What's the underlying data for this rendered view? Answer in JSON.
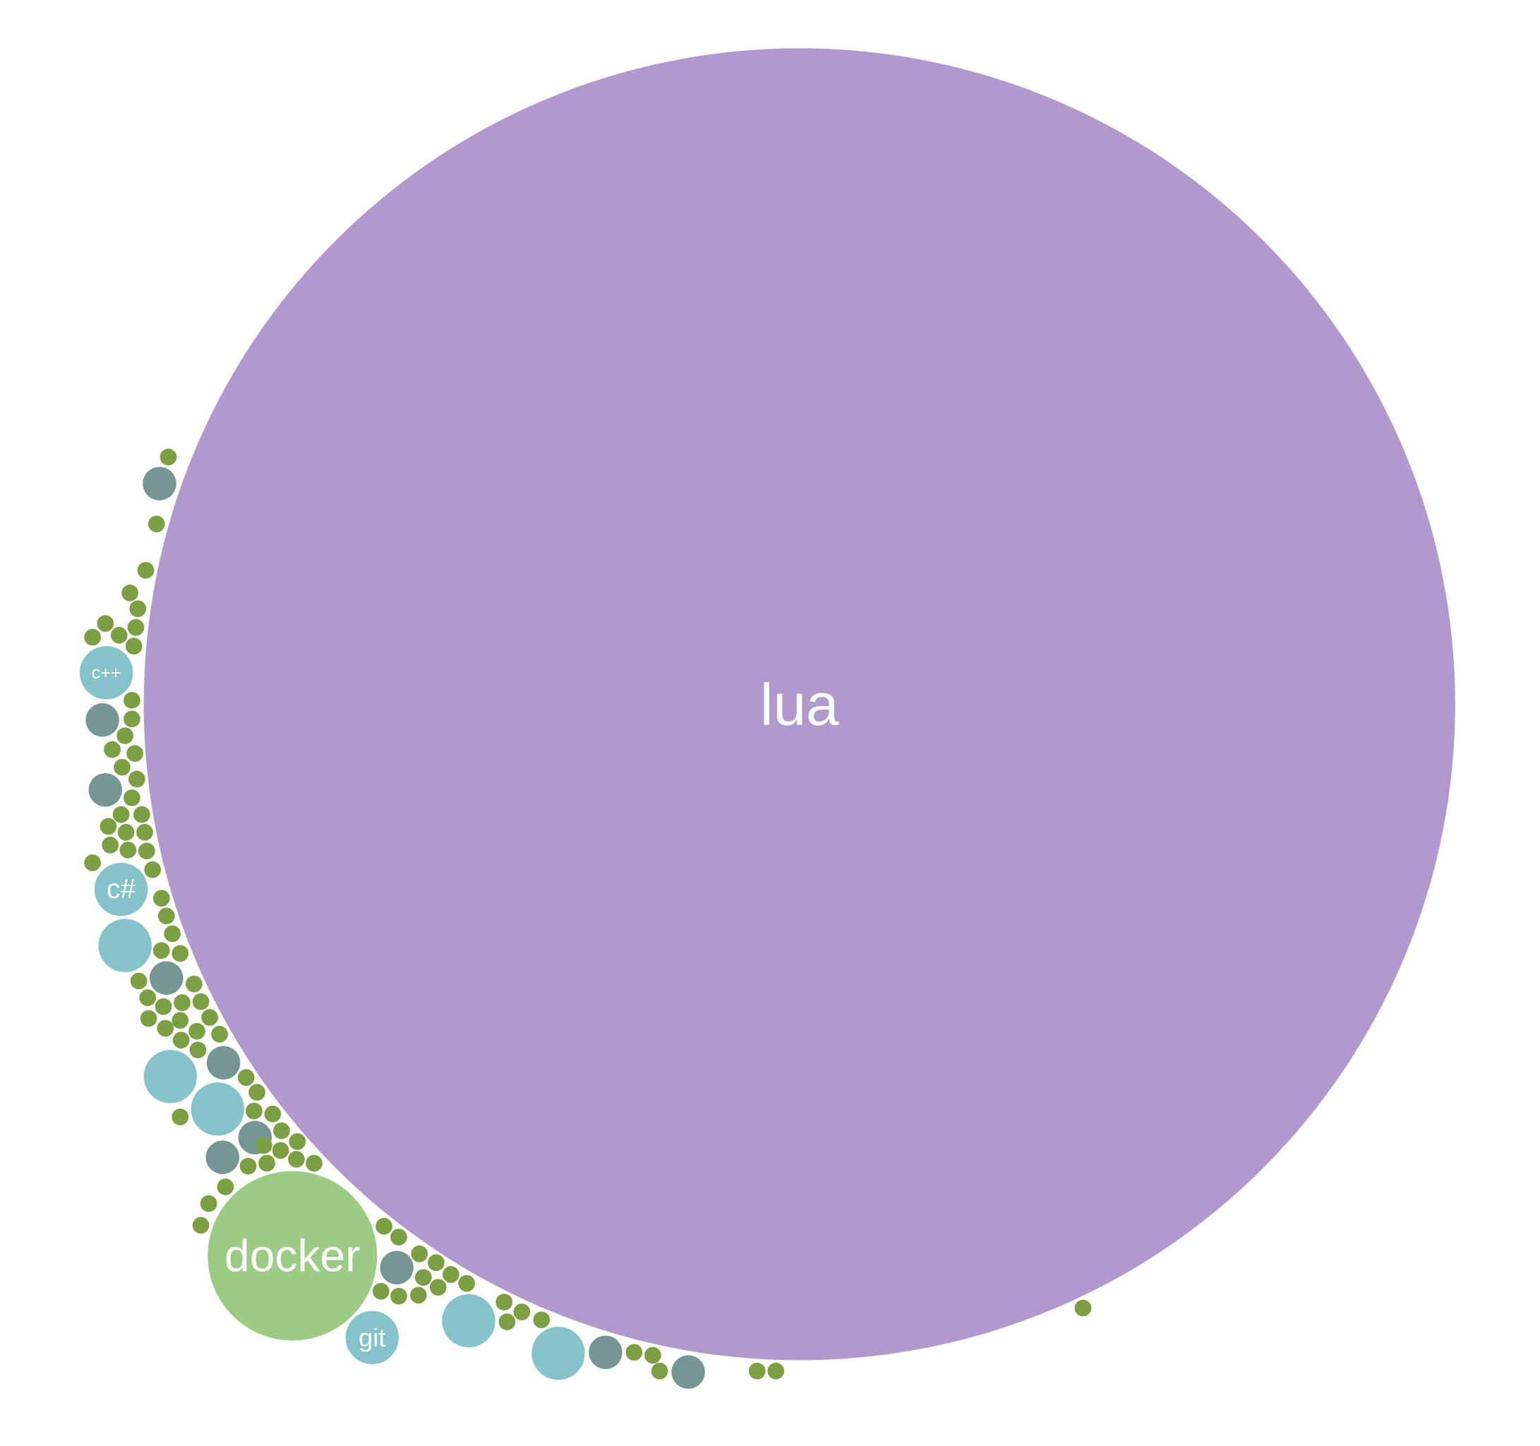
{
  "chart_data": {
    "type": "bubble",
    "colors": {
      "purple": "#b09acd",
      "light_green": "#9ccc84",
      "teal": "#84c3c9",
      "dark_teal": "#769694",
      "olive": "#7c9f44"
    },
    "labeled_bubbles": [
      {
        "label": "lua",
        "color": "purple"
      },
      {
        "label": "docker",
        "color": "light_green"
      },
      {
        "label": "git",
        "color": "teal"
      },
      {
        "label": "c#",
        "color": "teal"
      },
      {
        "label": "c++",
        "color": "teal"
      }
    ],
    "unlabeled_counts": {
      "teal": 5,
      "dark_teal": 11,
      "olive": 100
    }
  }
}
